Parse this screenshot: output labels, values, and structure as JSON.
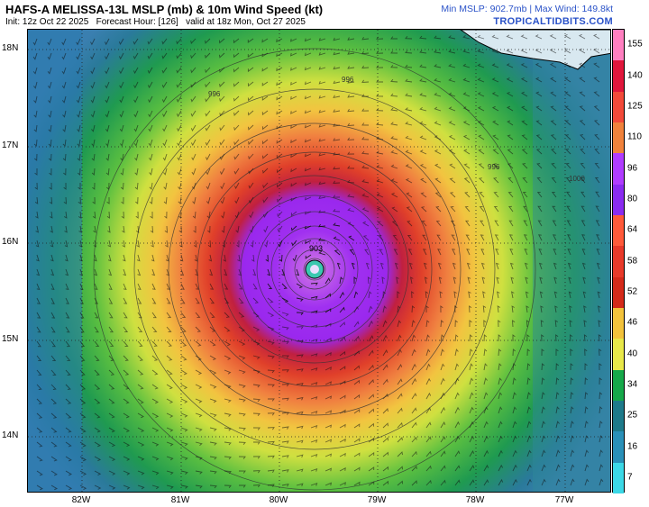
{
  "header": {
    "title": "HAFS-A MELISSA-13L MSLP (mb) & 10m Wind Speed (kt)",
    "init": "Init: 12z Oct 22 2025",
    "forecast_hour": "Forecast Hour: [126]",
    "valid": "valid at 18z Mon, Oct 27 2025",
    "stats": "Min MSLP: 902.7mb | Max Wind: 149.8kt",
    "site": "TROPICALTIDBITS.COM"
  },
  "map": {
    "lat_labels": [
      "18N",
      "17N",
      "16N",
      "15N",
      "14N"
    ],
    "lon_labels": [
      "82W",
      "81W",
      "80W",
      "79W",
      "78W",
      "77W"
    ],
    "center_pressure_label": "903",
    "isobar_labels": [
      "996",
      "996",
      "996",
      "1000"
    ]
  },
  "colorbar": {
    "ticks": [
      "155",
      "140",
      "125",
      "110",
      "96",
      "80",
      "64",
      "58",
      "52",
      "46",
      "40",
      "34",
      "25",
      "16",
      "7"
    ],
    "colors": [
      "#ff7fc0",
      "#e0173c",
      "#f24a3a",
      "#f0823c",
      "#b03cff",
      "#8a2cf0",
      "#ff5a3a",
      "#e83a2a",
      "#d42a1a",
      "#f2c23c",
      "#e8e84a",
      "#16a84a",
      "#1e7a8a",
      "#2a90b8",
      "#3cd8e6"
    ]
  }
}
